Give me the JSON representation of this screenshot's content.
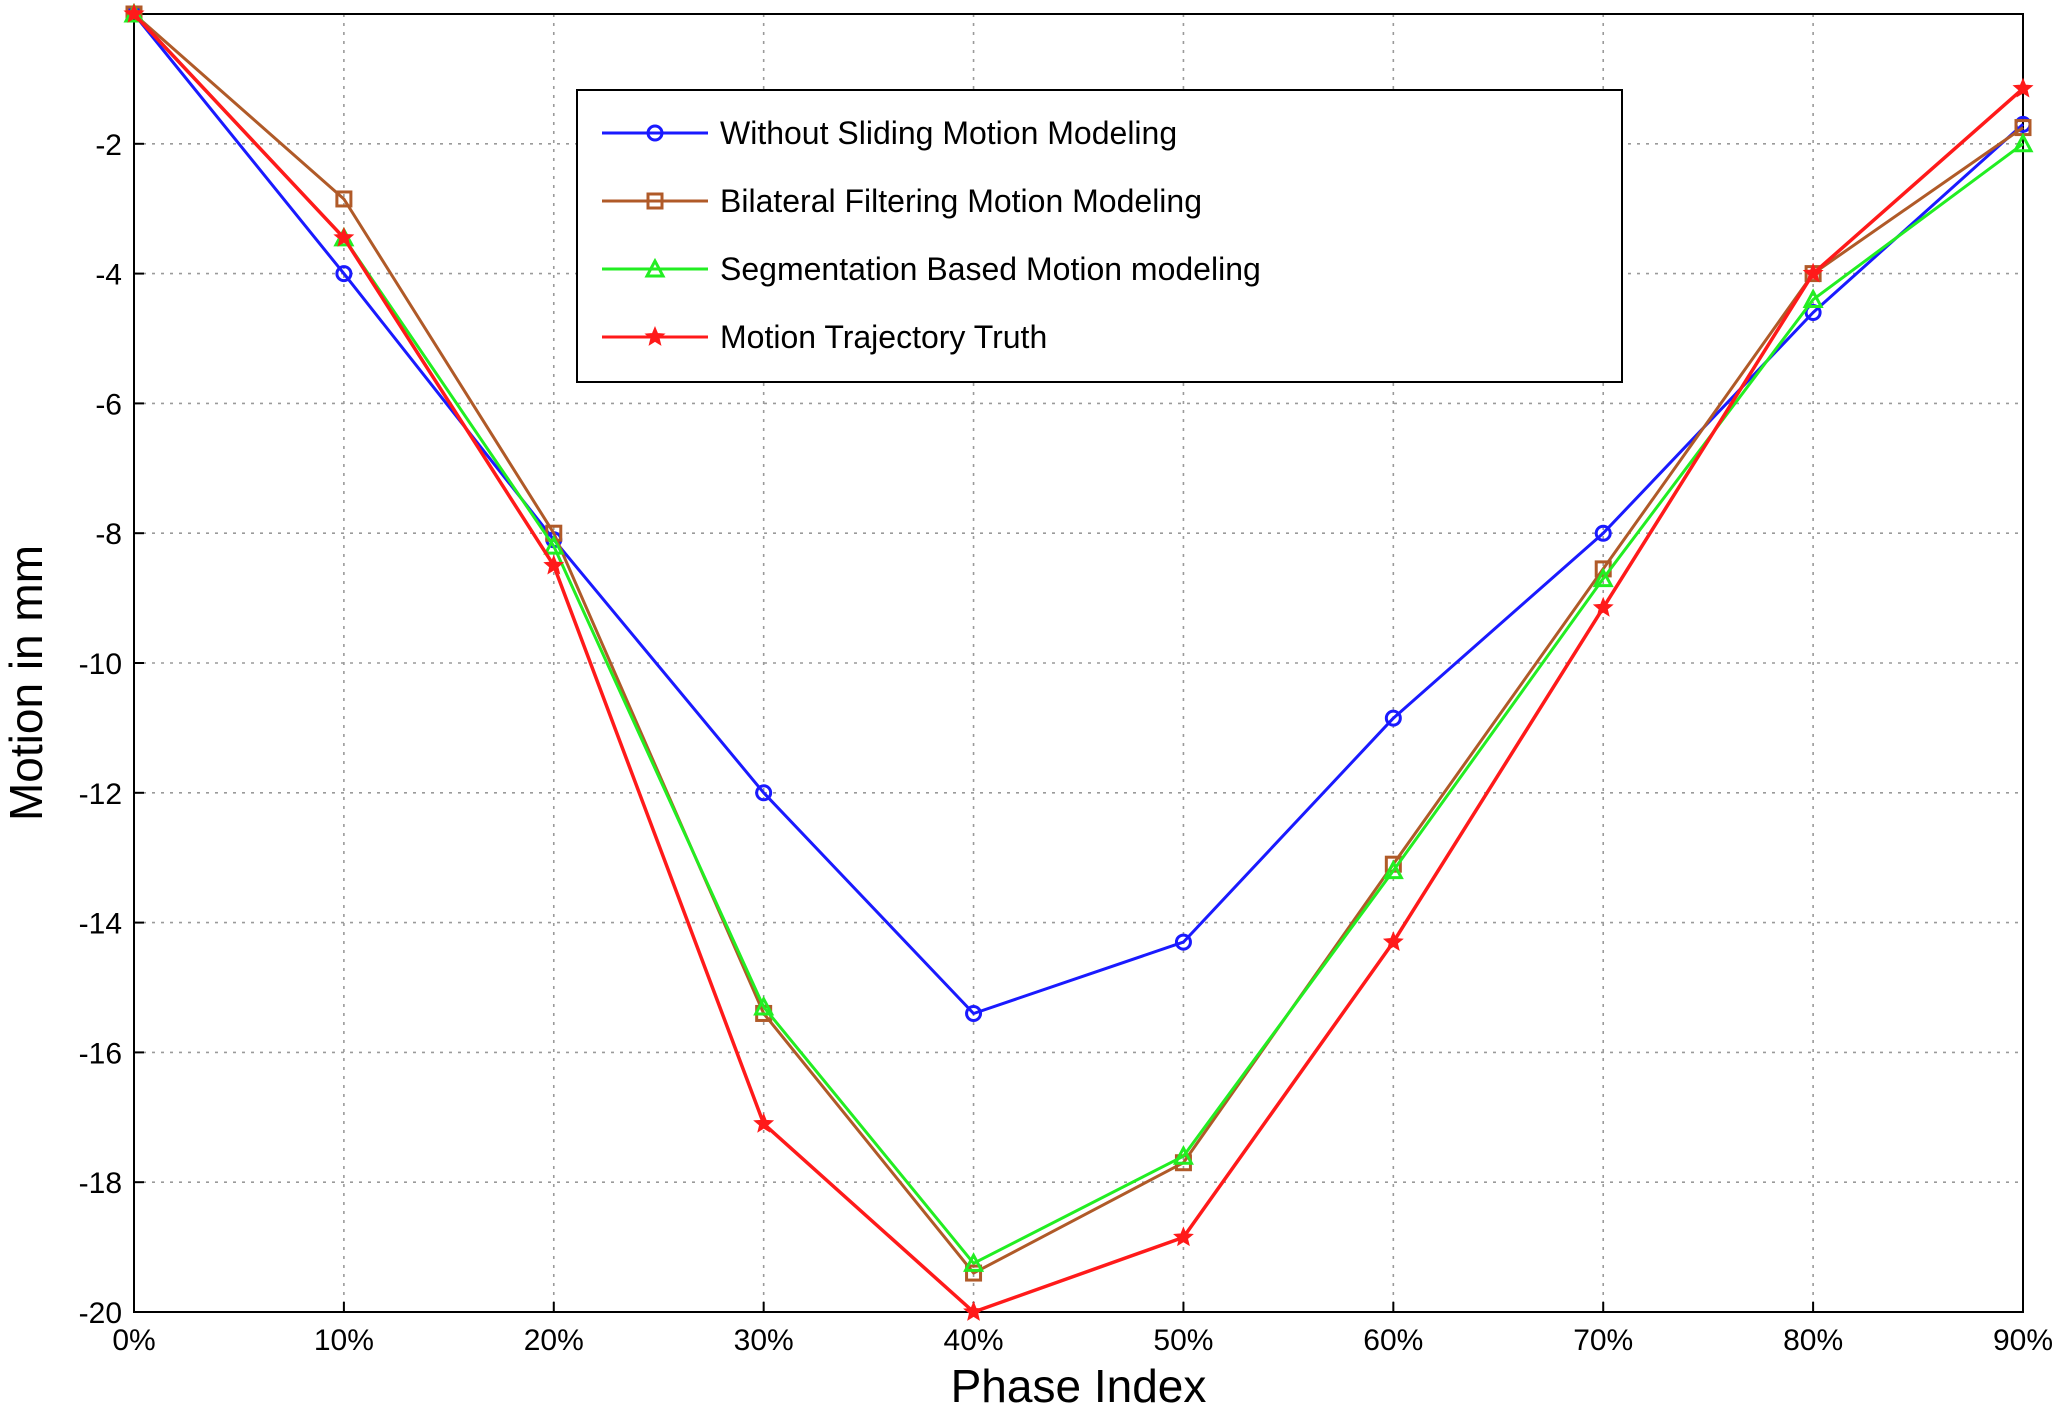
{
  "chart_data": {
    "type": "line",
    "categories": [
      "0%",
      "10%",
      "20%",
      "30%",
      "40%",
      "50%",
      "60%",
      "70%",
      "80%",
      "90%"
    ],
    "xlabel": "Phase Index",
    "ylabel": "Motion in mm",
    "ylim": [
      -20,
      0
    ],
    "yticks": [
      -2,
      -4,
      -6,
      -8,
      -10,
      -12,
      -14,
      -16,
      -18,
      -20
    ],
    "grid": true,
    "legend_position": "top-center",
    "series": [
      {
        "name": "Without Sliding Motion Modeling",
        "color": "#1a1aff",
        "marker": "circle",
        "values": [
          0,
          -4.0,
          -8.1,
          -12.0,
          -15.4,
          -14.3,
          -10.85,
          -8.0,
          -4.6,
          -1.7
        ]
      },
      {
        "name": "Bilateral Filtering Motion Modeling",
        "color": "#b05a28",
        "marker": "square",
        "values": [
          0,
          -2.85,
          -8.0,
          -15.4,
          -19.4,
          -17.7,
          -13.1,
          -8.55,
          -4.0,
          -1.75
        ]
      },
      {
        "name": "Segmentation Based Motion modeling",
        "color": "#22ee22",
        "marker": "triangle",
        "values": [
          0,
          -3.45,
          -8.2,
          -15.3,
          -19.25,
          -17.6,
          -13.2,
          -8.7,
          -4.4,
          -2.0
        ]
      },
      {
        "name": "Motion Trajectory Truth",
        "color": "#ff1a1a",
        "marker": "star",
        "values": [
          0,
          -3.45,
          -8.5,
          -17.1,
          -20.0,
          -18.85,
          -14.3,
          -9.15,
          -4.0,
          -1.15
        ]
      }
    ]
  }
}
